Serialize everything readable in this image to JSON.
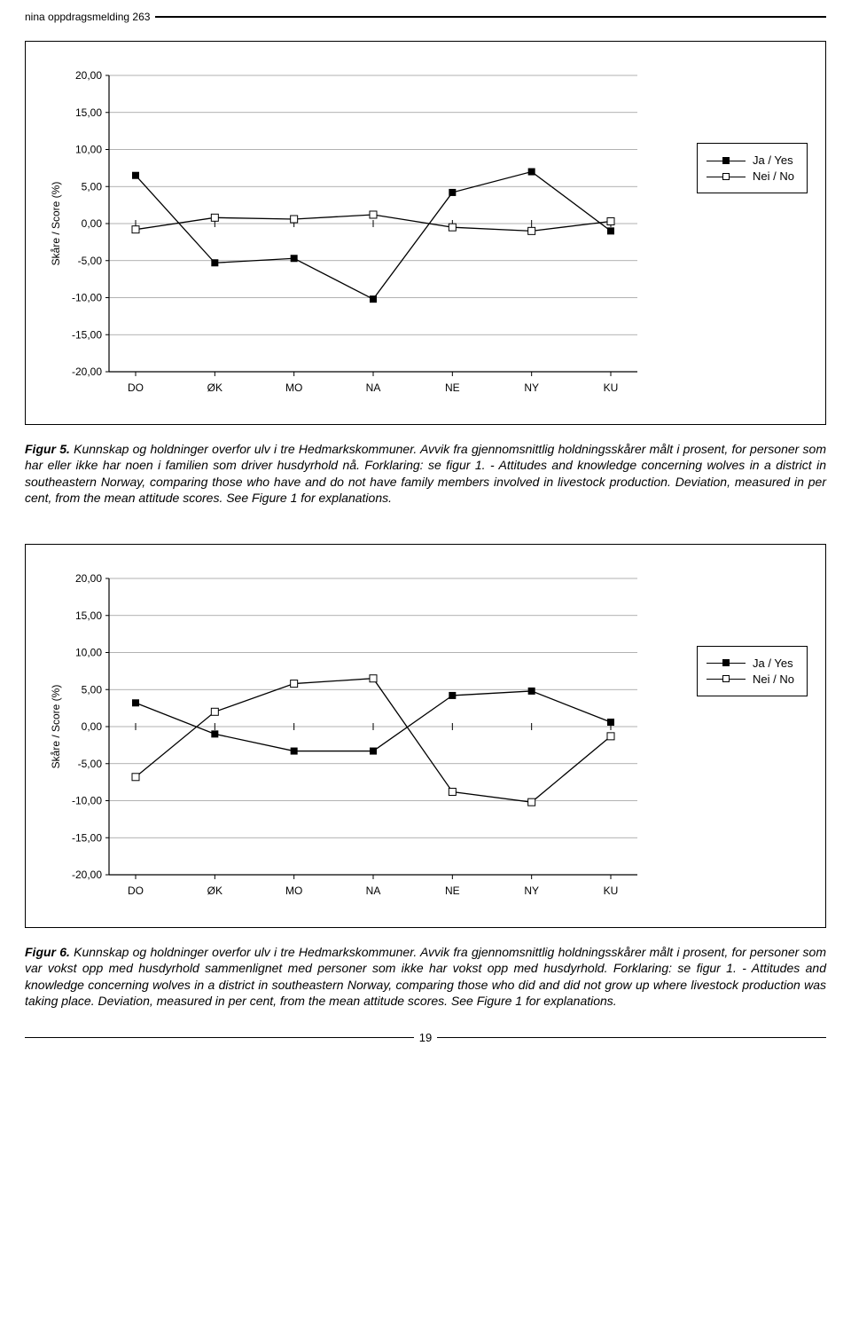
{
  "header": {
    "text": "nina oppdragsmelding 263"
  },
  "chart_common": {
    "y_axis_label": "Skåre / Score (%)",
    "ylim": [
      -20,
      20
    ],
    "ytick_step": 5,
    "ytick_labels": [
      "20,00",
      "15,00",
      "10,00",
      "5,00",
      "0,00",
      "-5,00",
      "-10,00",
      "-15,00",
      "-20,00"
    ],
    "ytick_values": [
      20,
      15,
      10,
      5,
      0,
      -5,
      -10,
      -15,
      -20
    ],
    "categories": [
      "DO",
      "ØK",
      "MO",
      "NA",
      "NE",
      "NY",
      "KU"
    ],
    "grid_color": "#999999",
    "axis_color": "#000000",
    "background": "#ffffff",
    "legend": {
      "yes_label": "Ja / Yes",
      "no_label": "Nei / No",
      "yes_marker": "filled-square",
      "no_marker": "open-square",
      "line_color": "#000000"
    },
    "tick_fontsize": 12,
    "label_fontsize": 12
  },
  "figure5": {
    "type": "line",
    "series": {
      "ja": {
        "values": [
          6.5,
          -5.3,
          -4.7,
          -10.2,
          4.2,
          7.0,
          -1.0
        ],
        "marker": "filled-square",
        "color": "#000000"
      },
      "nei": {
        "values": [
          -0.8,
          0.8,
          0.6,
          1.2,
          -0.5,
          -1.0,
          0.3
        ],
        "marker": "open-square",
        "color": "#000000"
      }
    }
  },
  "figure6": {
    "type": "line",
    "series": {
      "ja": {
        "values": [
          3.2,
          -1.0,
          -3.3,
          -3.3,
          4.2,
          4.8,
          0.6
        ],
        "marker": "filled-square",
        "color": "#000000"
      },
      "nei": {
        "values": [
          -6.8,
          2.0,
          5.8,
          6.5,
          -8.8,
          -10.2,
          -1.3
        ],
        "marker": "open-square",
        "color": "#000000"
      }
    }
  },
  "captions": {
    "fig5_label": "Figur 5.",
    "fig5_text_it": " Kunnskap og holdninger overfor ulv i tre Hedmarkskommuner. Avvik fra gjennomsnittlig holdningsskårer målt i prosent, for personer som har eller ikke har noen i familien som driver husdyrhold nå. Forklaring: se figur 1. - Attitudes and knowledge concerning wolves in a district in southeastern Norway, comparing those who have and do not have family members involved in livestock production. Deviation, measured in per cent, from the mean attitude scores. See Figure 1 for explanations.",
    "fig6_label": "Figur 6.",
    "fig6_text_it": " Kunnskap og holdninger overfor ulv i tre Hedmarkskommuner. Avvik fra gjennomsnittlig holdningsskårer målt i prosent, for personer som var vokst opp med husdyrhold sammenlignet med personer som ikke har vokst opp med husdyrhold. Forklaring: se figur 1. - Attitudes and knowledge concerning wolves in a district in southeastern Norway, comparing those who did and did not grow up where livestock production was taking place. Deviation, measured in per cent, from the mean attitude scores. See Figure 1 for explanations."
  },
  "page_number": "19"
}
